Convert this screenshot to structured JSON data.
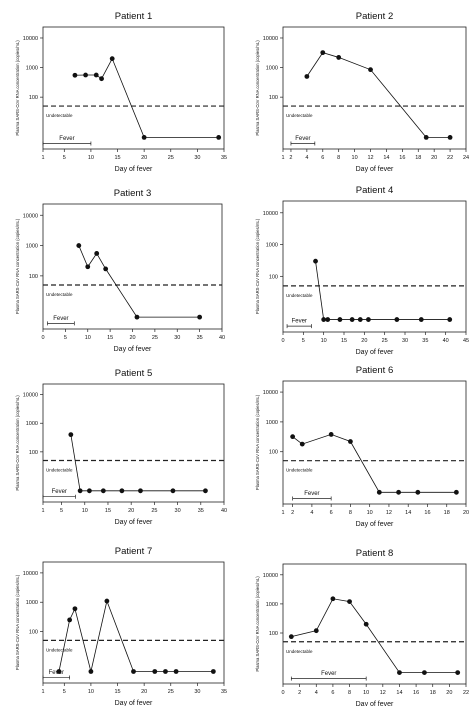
{
  "chart_data": [
    {
      "type": "line",
      "title": "Patient 1",
      "xlabel": "Day of fever",
      "ylabel": "Plasma SARS-CoV RNA concentration (copies/mL)",
      "scale": "log",
      "xlim": [
        1,
        35
      ],
      "xticks": [
        1,
        5,
        10,
        15,
        20,
        25,
        30,
        35
      ],
      "yticks": [
        100,
        1000,
        10000
      ],
      "ytick_labels": [
        "100",
        "1000",
        "10000"
      ],
      "threshold": 50,
      "threshold_label": "Undetectable",
      "fever_label": "Fever",
      "fever_span": [
        1,
        10
      ],
      "points": [
        [
          7,
          550
        ],
        [
          9,
          560
        ],
        [
          11,
          560
        ],
        [
          12,
          420
        ],
        [
          14,
          2000
        ],
        [
          20,
          "u"
        ],
        [
          34,
          "u"
        ]
      ]
    },
    {
      "type": "line",
      "title": "Patient 2",
      "xlabel": "Day of fever",
      "ylabel": "Plasma SARS-CoV RNA concentration (copies/mL)",
      "scale": "log",
      "xlim": [
        1,
        24
      ],
      "xticks": [
        1,
        2,
        4,
        6,
        8,
        10,
        12,
        14,
        16,
        18,
        20,
        22,
        24
      ],
      "yticks": [
        100,
        1000,
        10000
      ],
      "ytick_labels": [
        "100",
        "1000",
        "10000"
      ],
      "threshold": 50,
      "threshold_label": "Undetectable",
      "fever_label": "Fever",
      "fever_span": [
        2,
        5
      ],
      "points": [
        [
          4,
          500
        ],
        [
          6,
          3200
        ],
        [
          8,
          2200
        ],
        [
          12,
          850
        ],
        [
          19,
          "u"
        ],
        [
          22,
          "u"
        ]
      ]
    },
    {
      "type": "line",
      "title": "Patient 3",
      "xlabel": "Day of fever",
      "ylabel": "Plasma SARS-CoV RNA concentration (copies/mL)",
      "scale": "log",
      "xlim": [
        0,
        40
      ],
      "xticks": [
        0,
        5,
        10,
        15,
        20,
        25,
        30,
        35,
        40
      ],
      "yticks": [
        100,
        1000,
        10000
      ],
      "ytick_labels": [
        "100",
        "1000",
        "10000"
      ],
      "threshold": 50,
      "threshold_label": "Undetectable",
      "fever_label": "Fever",
      "fever_span": [
        1,
        7
      ],
      "points": [
        [
          8,
          1000
        ],
        [
          10,
          200
        ],
        [
          12,
          550
        ],
        [
          14,
          170
        ],
        [
          21,
          "u"
        ],
        [
          35,
          "u"
        ]
      ]
    },
    {
      "type": "line",
      "title": "Patient 4",
      "xlabel": "Day of fever",
      "ylabel": "Plasma SARS-CoV RNA concentration (copies/mL)",
      "scale": "log",
      "xlim": [
        0,
        45
      ],
      "xticks": [
        0,
        5,
        10,
        15,
        20,
        25,
        30,
        35,
        40,
        45
      ],
      "yticks": [
        100,
        1000,
        10000
      ],
      "ytick_labels": [
        "100",
        "1000",
        "10000"
      ],
      "threshold": 50,
      "threshold_label": "Undetectable",
      "fever_label": "Fever",
      "fever_span": [
        1,
        7
      ],
      "points": [
        [
          8,
          300
        ],
        [
          10,
          "u"
        ],
        [
          11,
          "u"
        ],
        [
          14,
          "u"
        ],
        [
          17,
          "u"
        ],
        [
          19,
          "u"
        ],
        [
          21,
          "u"
        ],
        [
          28,
          "u"
        ],
        [
          34,
          "u"
        ],
        [
          41,
          "u"
        ]
      ]
    },
    {
      "type": "line",
      "title": "Patient 5",
      "xlabel": "Day of fever",
      "ylabel": "Plasma SARS-CoV RNA concentration (copies/mL)",
      "scale": "log",
      "xlim": [
        1,
        40
      ],
      "xticks": [
        1,
        5,
        10,
        15,
        20,
        25,
        30,
        35,
        40
      ],
      "yticks": [
        100,
        1000,
        10000
      ],
      "ytick_labels": [
        "100",
        "1000",
        "10000"
      ],
      "threshold": 50,
      "threshold_label": "Undetectable",
      "fever_label": "Fever",
      "fever_span": [
        1,
        8
      ],
      "points": [
        [
          7,
          400
        ],
        [
          9,
          "u"
        ],
        [
          11,
          "u"
        ],
        [
          14,
          "u"
        ],
        [
          18,
          "u"
        ],
        [
          22,
          "u"
        ],
        [
          29,
          "u"
        ],
        [
          36,
          "u"
        ]
      ]
    },
    {
      "type": "line",
      "title": "Patient 6",
      "xlabel": "Day of fever",
      "ylabel": "Plasma SARS-CoV RNA concentration (copies/mL)",
      "scale": "log",
      "xlim": [
        1,
        20
      ],
      "xticks": [
        1,
        2,
        4,
        6,
        8,
        10,
        12,
        14,
        16,
        18,
        20
      ],
      "yticks": [
        100,
        1000,
        10000
      ],
      "ytick_labels": [
        "100",
        "1000",
        "10000"
      ],
      "threshold": 50,
      "threshold_label": "Undetectable",
      "fever_label": "Fever",
      "fever_span": [
        2,
        6
      ],
      "points": [
        [
          2,
          320
        ],
        [
          3,
          180
        ],
        [
          6,
          380
        ],
        [
          8,
          220
        ],
        [
          11,
          "u"
        ],
        [
          13,
          "u"
        ],
        [
          15,
          "u"
        ],
        [
          19,
          "u"
        ]
      ]
    },
    {
      "type": "line",
      "title": "Patient 7",
      "xlabel": "Day of fever",
      "ylabel": "Plasma SARS-CoV RNA concentration (copies/mL)",
      "scale": "log",
      "xlim": [
        1,
        35
      ],
      "xticks": [
        1,
        5,
        10,
        15,
        20,
        25,
        30,
        35
      ],
      "yticks": [
        100,
        1000,
        10000
      ],
      "ytick_labels": [
        "100",
        "1000",
        "10000"
      ],
      "threshold": 50,
      "threshold_label": "Undetectable",
      "fever_label": "Fever",
      "fever_span": [
        1,
        6
      ],
      "points": [
        [
          4,
          "u"
        ],
        [
          6,
          250
        ],
        [
          7,
          600
        ],
        [
          10,
          "u"
        ],
        [
          13,
          1100
        ],
        [
          18,
          "u"
        ],
        [
          22,
          "u"
        ],
        [
          24,
          "u"
        ],
        [
          26,
          "u"
        ],
        [
          33,
          "u"
        ]
      ]
    },
    {
      "type": "line",
      "title": "Patient 8",
      "xlabel": "Day of fever",
      "ylabel": "Plasma SARS-CoV RNA concentration (copies/mL)",
      "scale": "log",
      "xlim": [
        0,
        22
      ],
      "xticks": [
        0,
        2,
        4,
        6,
        8,
        10,
        12,
        14,
        16,
        18,
        20,
        22
      ],
      "yticks": [
        100,
        1000,
        10000
      ],
      "ytick_labels": [
        "100",
        "1000",
        "10000"
      ],
      "threshold": 50,
      "threshold_label": "Undetectable",
      "fever_label": "Fever",
      "fever_span": [
        1,
        10
      ],
      "points": [
        [
          1,
          75
        ],
        [
          4,
          120
        ],
        [
          6,
          1500
        ],
        [
          8,
          1200
        ],
        [
          10,
          200
        ],
        [
          14,
          "u"
        ],
        [
          17,
          "u"
        ],
        [
          21,
          "u"
        ]
      ]
    }
  ]
}
